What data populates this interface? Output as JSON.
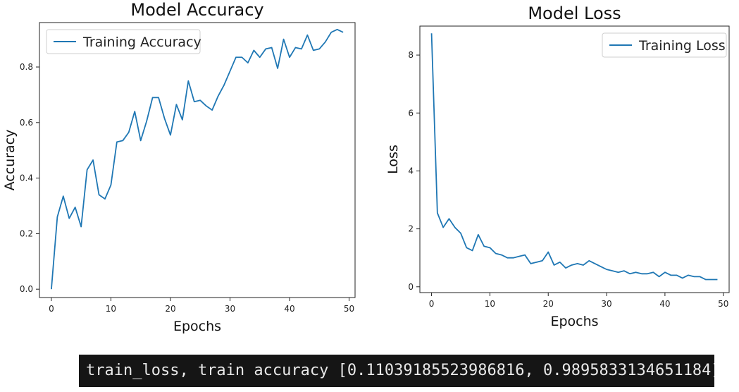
{
  "chart_data": [
    {
      "type": "line",
      "title": "Model Accuracy",
      "xlabel": "Epochs",
      "ylabel": "Accuracy",
      "xlim": [
        -2,
        51
      ],
      "ylim": [
        -0.03,
        0.96
      ],
      "xticks": [
        0,
        10,
        20,
        30,
        40,
        50
      ],
      "yticks": [
        0.0,
        0.2,
        0.4,
        0.6,
        0.8
      ],
      "ytick_labels": [
        "0.0",
        "0.2",
        "0.4",
        "0.6",
        "0.8"
      ],
      "legend": "upper-left",
      "grid": false,
      "series": [
        {
          "name": "Training Accuracy",
          "color": "#1f77b4",
          "x": [
            0,
            1,
            2,
            3,
            4,
            5,
            6,
            7,
            8,
            9,
            10,
            11,
            12,
            13,
            14,
            15,
            16,
            17,
            18,
            19,
            20,
            21,
            22,
            23,
            24,
            25,
            26,
            27,
            28,
            29,
            30,
            31,
            32,
            33,
            34,
            35,
            36,
            37,
            38,
            39,
            40,
            41,
            42,
            43,
            44,
            45,
            46,
            47,
            48,
            49
          ],
          "values": [
            0.0,
            0.26,
            0.335,
            0.255,
            0.295,
            0.225,
            0.43,
            0.465,
            0.34,
            0.325,
            0.375,
            0.53,
            0.535,
            0.565,
            0.64,
            0.535,
            0.605,
            0.69,
            0.69,
            0.615,
            0.555,
            0.665,
            0.61,
            0.75,
            0.675,
            0.68,
            0.66,
            0.645,
            0.695,
            0.735,
            0.785,
            0.835,
            0.835,
            0.815,
            0.86,
            0.835,
            0.865,
            0.87,
            0.795,
            0.9,
            0.835,
            0.87,
            0.865,
            0.915,
            0.86,
            0.865,
            0.89,
            0.925,
            0.935,
            0.925
          ]
        }
      ]
    },
    {
      "type": "line",
      "title": "Model Loss",
      "xlabel": "Epochs",
      "ylabel": "Loss",
      "xlim": [
        -2,
        51
      ],
      "ylim": [
        -0.2,
        9.0
      ],
      "xticks": [
        0,
        10,
        20,
        30,
        40,
        50
      ],
      "yticks": [
        0,
        2,
        4,
        6,
        8
      ],
      "ytick_labels": [
        "0",
        "2",
        "4",
        "6",
        "8"
      ],
      "legend": "upper-right",
      "grid": false,
      "series": [
        {
          "name": "Training Loss",
          "color": "#1f77b4",
          "x": [
            0,
            1,
            2,
            3,
            4,
            5,
            6,
            7,
            8,
            9,
            10,
            11,
            12,
            13,
            14,
            15,
            16,
            17,
            18,
            19,
            20,
            21,
            22,
            23,
            24,
            25,
            26,
            27,
            28,
            29,
            30,
            31,
            32,
            33,
            34,
            35,
            36,
            37,
            38,
            39,
            40,
            41,
            42,
            43,
            44,
            45,
            46,
            47,
            48,
            49
          ],
          "values": [
            8.75,
            2.55,
            2.05,
            2.35,
            2.05,
            1.85,
            1.35,
            1.25,
            1.8,
            1.4,
            1.35,
            1.15,
            1.1,
            1.0,
            1.0,
            1.05,
            1.1,
            0.8,
            0.85,
            0.9,
            1.2,
            0.75,
            0.85,
            0.65,
            0.75,
            0.8,
            0.75,
            0.9,
            0.8,
            0.7,
            0.6,
            0.55,
            0.5,
            0.55,
            0.45,
            0.5,
            0.45,
            0.45,
            0.5,
            0.35,
            0.5,
            0.4,
            0.4,
            0.3,
            0.4,
            0.35,
            0.35,
            0.25,
            0.25,
            0.25
          ]
        }
      ]
    }
  ],
  "console": {
    "text": "train_loss, train accuracy [0.1103918552398681 6, 0.9895833134651184]"
  }
}
